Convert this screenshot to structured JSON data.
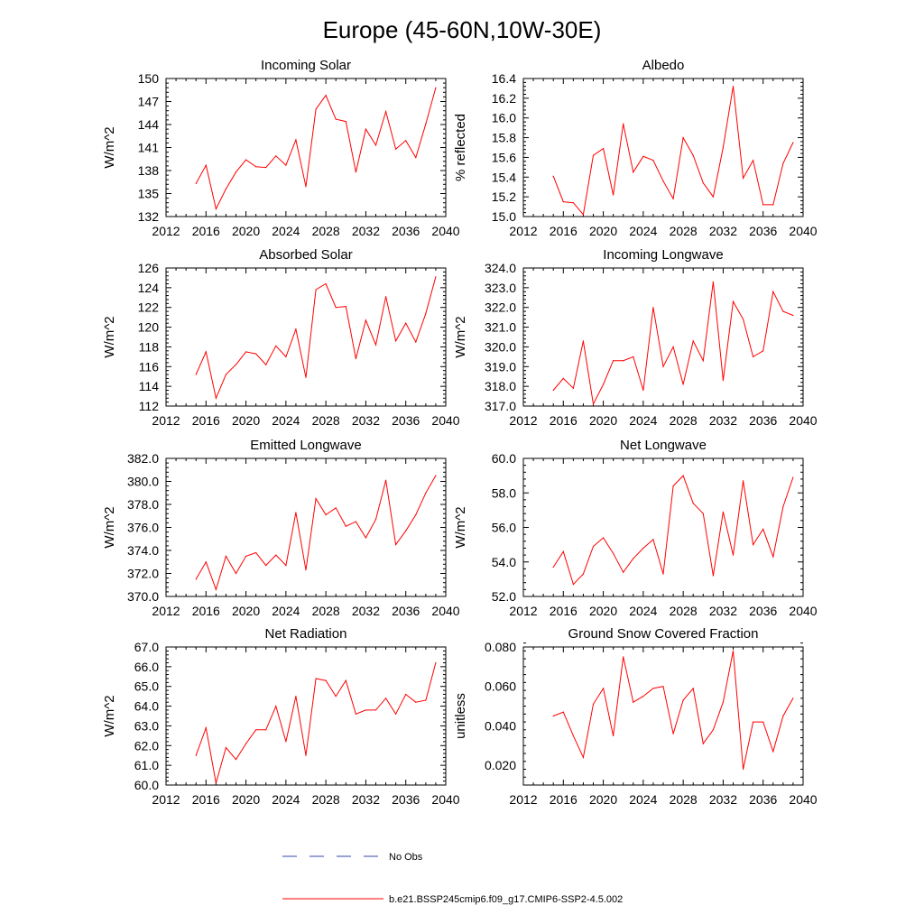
{
  "figure": {
    "title": "Europe (45-60N,10W-30E)"
  },
  "legend": {
    "entries": [
      {
        "label": "No Obs",
        "style": "dashed",
        "color": "#3344aa"
      },
      {
        "label": "b.e21.BSSP245cmip6.f09_g17.CMIP6-SSP2-4.5.002",
        "style": "solid",
        "color": "#ff0000"
      }
    ]
  },
  "colors": {
    "series": "#ff0000",
    "axis": "#000000"
  },
  "chart_data": [
    {
      "type": "line",
      "title": "Incoming Solar",
      "ylabel": "W/m^2",
      "xlim": [
        2012,
        2040
      ],
      "xticks": [
        "2012",
        "2016",
        "2020",
        "2024",
        "2028",
        "2032",
        "2036",
        "2040"
      ],
      "ylim": [
        132,
        150
      ],
      "yticks": [
        "132",
        "135",
        "138",
        "141",
        "144",
        "147",
        "150"
      ],
      "x": [
        2015,
        2016,
        2017,
        2018,
        2019,
        2020,
        2021,
        2022,
        2023,
        2024,
        2025,
        2026,
        2027,
        2028,
        2029,
        2030,
        2031,
        2032,
        2033,
        2034,
        2035,
        2036,
        2037,
        2038,
        2039
      ],
      "series": [
        {
          "values": [
            136.3,
            138.7,
            133.0,
            135.6,
            137.8,
            139.4,
            138.5,
            138.4,
            139.9,
            138.7,
            142.0,
            135.9,
            146.0,
            147.8,
            144.7,
            144.4,
            137.8,
            143.4,
            141.3,
            145.7,
            140.8,
            141.9,
            139.7,
            144.1,
            148.8
          ]
        }
      ]
    },
    {
      "type": "line",
      "title": "Albedo",
      "ylabel": "% reflected",
      "xlim": [
        2012,
        2040
      ],
      "xticks": [
        "2012",
        "2016",
        "2020",
        "2024",
        "2028",
        "2032",
        "2036",
        "2040"
      ],
      "ylim": [
        15.0,
        16.4
      ],
      "yticks": [
        "15.0",
        "15.2",
        "15.4",
        "15.6",
        "15.8",
        "16.0",
        "16.2",
        "16.4"
      ],
      "x": [
        2015,
        2016,
        2017,
        2018,
        2019,
        2020,
        2021,
        2022,
        2023,
        2024,
        2025,
        2026,
        2027,
        2028,
        2029,
        2030,
        2031,
        2032,
        2033,
        2034,
        2035,
        2036,
        2037,
        2038,
        2039
      ],
      "series": [
        {
          "values": [
            15.41,
            15.15,
            15.14,
            15.02,
            15.62,
            15.69,
            15.22,
            15.94,
            15.45,
            15.61,
            15.57,
            15.36,
            15.18,
            15.8,
            15.62,
            15.34,
            15.2,
            15.7,
            16.32,
            15.39,
            15.57,
            15.12,
            15.12,
            15.54,
            15.75
          ]
        }
      ]
    },
    {
      "type": "line",
      "title": "Absorbed Solar",
      "ylabel": "W/m^2",
      "xlim": [
        2012,
        2040
      ],
      "xticks": [
        "2012",
        "2016",
        "2020",
        "2024",
        "2028",
        "2032",
        "2036",
        "2040"
      ],
      "ylim": [
        112,
        126
      ],
      "yticks": [
        "112",
        "114",
        "116",
        "118",
        "120",
        "122",
        "124",
        "126"
      ],
      "x": [
        2015,
        2016,
        2017,
        2018,
        2019,
        2020,
        2021,
        2022,
        2023,
        2024,
        2025,
        2026,
        2027,
        2028,
        2029,
        2030,
        2031,
        2032,
        2033,
        2034,
        2035,
        2036,
        2037,
        2038,
        2039
      ],
      "series": [
        {
          "values": [
            115.2,
            117.5,
            112.8,
            115.2,
            116.2,
            117.5,
            117.3,
            116.2,
            118.1,
            117.0,
            119.8,
            114.9,
            123.8,
            124.4,
            122.0,
            122.1,
            116.8,
            120.7,
            118.2,
            123.1,
            118.6,
            120.4,
            118.5,
            121.4,
            125.1
          ]
        }
      ]
    },
    {
      "type": "line",
      "title": "Incoming Longwave",
      "ylabel": "W/m^2",
      "xlim": [
        2012,
        2040
      ],
      "xticks": [
        "2012",
        "2016",
        "2020",
        "2024",
        "2028",
        "2032",
        "2036",
        "2040"
      ],
      "ylim": [
        317.0,
        324.0
      ],
      "yticks": [
        "317.0",
        "318.0",
        "319.0",
        "320.0",
        "321.0",
        "322.0",
        "323.0",
        "324.0"
      ],
      "x": [
        2015,
        2016,
        2017,
        2018,
        2019,
        2020,
        2021,
        2022,
        2023,
        2024,
        2025,
        2026,
        2027,
        2028,
        2029,
        2030,
        2031,
        2032,
        2033,
        2034,
        2035,
        2036,
        2037,
        2038,
        2039
      ],
      "series": [
        {
          "values": [
            317.8,
            318.4,
            317.9,
            320.3,
            317.1,
            318.1,
            319.3,
            319.3,
            319.5,
            317.8,
            322.0,
            319.0,
            320.0,
            318.1,
            320.3,
            319.3,
            323.3,
            318.3,
            322.3,
            321.4,
            319.5,
            319.8,
            322.8,
            321.8,
            321.6
          ]
        }
      ]
    },
    {
      "type": "line",
      "title": "Emitted Longwave",
      "ylabel": "W/m^2",
      "xlim": [
        2012,
        2040
      ],
      "xticks": [
        "2012",
        "2016",
        "2020",
        "2024",
        "2028",
        "2032",
        "2036",
        "2040"
      ],
      "ylim": [
        370.0,
        382.0
      ],
      "yticks": [
        "370.0",
        "372.0",
        "374.0",
        "376.0",
        "378.0",
        "380.0",
        "382.0"
      ],
      "x": [
        2015,
        2016,
        2017,
        2018,
        2019,
        2020,
        2021,
        2022,
        2023,
        2024,
        2025,
        2026,
        2027,
        2028,
        2029,
        2030,
        2031,
        2032,
        2033,
        2034,
        2035,
        2036,
        2037,
        2038,
        2039
      ],
      "series": [
        {
          "values": [
            371.5,
            373.0,
            370.6,
            373.5,
            372.0,
            373.5,
            373.8,
            372.7,
            373.6,
            372.7,
            377.3,
            372.3,
            378.5,
            377.1,
            377.7,
            376.1,
            376.5,
            375.1,
            376.7,
            380.1,
            374.5,
            375.7,
            377.1,
            379.0,
            380.5
          ]
        }
      ]
    },
    {
      "type": "line",
      "title": "Net Longwave",
      "ylabel": "W/m^2",
      "xlim": [
        2012,
        2040
      ],
      "xticks": [
        "2012",
        "2016",
        "2020",
        "2024",
        "2028",
        "2032",
        "2036",
        "2040"
      ],
      "ylim": [
        52.0,
        60.0
      ],
      "yticks": [
        "52.0",
        "54.0",
        "56.0",
        "58.0",
        "60.0"
      ],
      "x": [
        2015,
        2016,
        2017,
        2018,
        2019,
        2020,
        2021,
        2022,
        2023,
        2024,
        2025,
        2026,
        2027,
        2028,
        2029,
        2030,
        2031,
        2032,
        2033,
        2034,
        2035,
        2036,
        2037,
        2038,
        2039
      ],
      "series": [
        {
          "values": [
            53.7,
            54.6,
            52.7,
            53.3,
            54.9,
            55.4,
            54.5,
            53.4,
            54.2,
            54.8,
            55.3,
            53.3,
            58.4,
            59.0,
            57.4,
            56.8,
            53.2,
            56.9,
            54.4,
            58.7,
            55.0,
            55.9,
            54.3,
            57.2,
            58.9
          ]
        }
      ]
    },
    {
      "type": "line",
      "title": "Net Radiation",
      "ylabel": "W/m^2",
      "xlim": [
        2012,
        2040
      ],
      "xticks": [
        "2012",
        "2016",
        "2020",
        "2024",
        "2028",
        "2032",
        "2036",
        "2040"
      ],
      "ylim": [
        60.0,
        67.0
      ],
      "yticks": [
        "60.0",
        "61.0",
        "62.0",
        "63.0",
        "64.0",
        "65.0",
        "66.0",
        "67.0"
      ],
      "x": [
        2015,
        2016,
        2017,
        2018,
        2019,
        2020,
        2021,
        2022,
        2023,
        2024,
        2025,
        2026,
        2027,
        2028,
        2029,
        2030,
        2031,
        2032,
        2033,
        2034,
        2035,
        2036,
        2037,
        2038,
        2039
      ],
      "series": [
        {
          "values": [
            61.5,
            62.9,
            60.1,
            61.9,
            61.3,
            62.1,
            62.8,
            62.8,
            64.0,
            62.2,
            64.5,
            61.5,
            65.4,
            65.3,
            64.5,
            65.3,
            63.6,
            63.8,
            63.8,
            64.4,
            63.6,
            64.6,
            64.2,
            64.3,
            66.2
          ]
        }
      ]
    },
    {
      "type": "line",
      "title": "Ground Snow Covered Fraction",
      "ylabel": "unitless",
      "xlim": [
        2012,
        2040
      ],
      "xticks": [
        "2012",
        "2016",
        "2020",
        "2024",
        "2028",
        "2032",
        "2036",
        "2040"
      ],
      "ylim": [
        0.01,
        0.08
      ],
      "yticks": [
        "0.020",
        "0.040",
        "0.060",
        "0.080"
      ],
      "x": [
        2015,
        2016,
        2017,
        2018,
        2019,
        2020,
        2021,
        2022,
        2023,
        2024,
        2025,
        2026,
        2027,
        2028,
        2029,
        2030,
        2031,
        2032,
        2033,
        2034,
        2035,
        2036,
        2037,
        2038,
        2039
      ],
      "series": [
        {
          "values": [
            0.045,
            0.047,
            0.035,
            0.024,
            0.051,
            0.059,
            0.035,
            0.075,
            0.052,
            0.055,
            0.059,
            0.06,
            0.036,
            0.053,
            0.059,
            0.031,
            0.038,
            0.052,
            0.078,
            0.018,
            0.042,
            0.042,
            0.027,
            0.045,
            0.054
          ]
        }
      ]
    }
  ]
}
